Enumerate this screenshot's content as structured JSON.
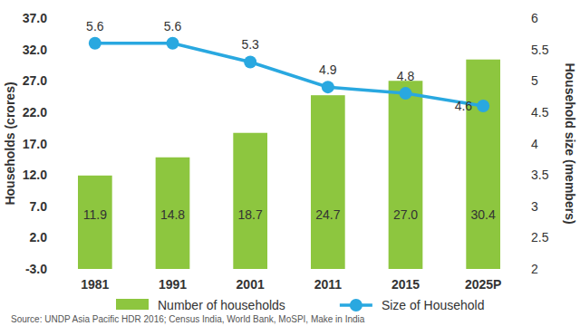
{
  "chart_data": {
    "type": "bar",
    "categories": [
      "1981",
      "1991",
      "2001",
      "2011",
      "2015",
      "2025P"
    ],
    "series": [
      {
        "name": "Number of households",
        "type": "bar",
        "color": "#8dc63f",
        "values": [
          11.9,
          14.8,
          18.7,
          24.7,
          27.0,
          30.4
        ],
        "value_labels": [
          "11.9",
          "14.8",
          "18.7",
          "24.7",
          "27.0",
          "30.4"
        ],
        "data_labels": true
      },
      {
        "name": "Size of Household",
        "type": "line",
        "axis": "y2",
        "color": "#29a8e0",
        "marker": "circle",
        "line_style": "solid",
        "values": [
          5.6,
          5.6,
          5.3,
          4.9,
          4.8,
          4.6
        ],
        "data_labels": true
      }
    ],
    "y_label": "Households (crores)",
    "y2_label": "Household size (members)",
    "ylim": [
      -3,
      37
    ],
    "yticks": [
      {
        "value": -3,
        "label": "-3.0"
      },
      {
        "value": 2,
        "label": "2.0"
      },
      {
        "value": 7,
        "label": "7.0"
      },
      {
        "value": 12,
        "label": "12.0"
      },
      {
        "value": 17,
        "label": "17.0"
      },
      {
        "value": 22,
        "label": "22.0"
      },
      {
        "value": 27,
        "label": "27.0"
      },
      {
        "value": 32,
        "label": "32.0"
      },
      {
        "value": 37,
        "label": "37.0"
      }
    ],
    "y2lim": [
      2,
      6
    ],
    "y2ticks": [
      2,
      2.5,
      3,
      3.5,
      4,
      4.5,
      5,
      5.5,
      6
    ],
    "grid": false,
    "legend": "bottom",
    "annotations": [
      "Source: UNDP Asia Pacific HDR 2016; Census India, World Bank, MoSPI, Make in India"
    ]
  }
}
